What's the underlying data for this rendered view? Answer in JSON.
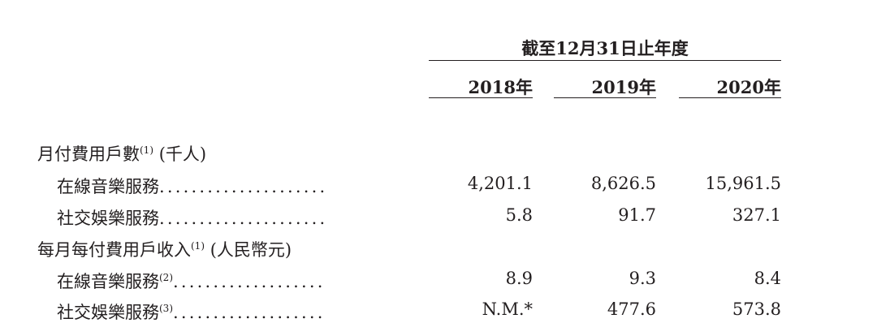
{
  "header": {
    "period": "截至12月31日止年度",
    "years": [
      "2018年",
      "2019年",
      "2020年"
    ]
  },
  "sections": [
    {
      "title": "月付費用戶數",
      "note": "(1)",
      "unit": "(千人)",
      "rows": [
        {
          "label": "在線音樂服務",
          "note": "",
          "leader": ".....................",
          "values": [
            "4,201.1",
            "8,626.5",
            "15,961.5"
          ]
        },
        {
          "label": "社交娛樂服務",
          "note": "",
          "leader": ".....................",
          "values": [
            "5.8",
            "91.7",
            "327.1"
          ]
        }
      ]
    },
    {
      "title": "每月每付費用戶收入",
      "note": "(1)",
      "unit": "(人民幣元)",
      "rows": [
        {
          "label": "在線音樂服務",
          "note": "(2)",
          "leader": "...................",
          "values": [
            "8.9",
            "9.3",
            "8.4"
          ]
        },
        {
          "label": "社交娛樂服務",
          "note": "(3)",
          "leader": "...................",
          "values": [
            "N.M.*",
            "477.6",
            "573.8"
          ]
        }
      ]
    }
  ]
}
